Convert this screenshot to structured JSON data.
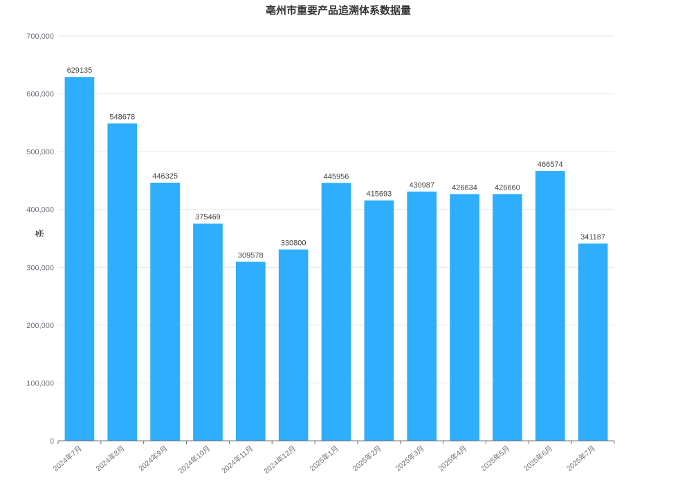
{
  "chart_data": {
    "type": "bar",
    "title": "亳州市重要产品追溯体系数据量",
    "ylabel": "条",
    "xlabel": "",
    "categories": [
      "2024年7月",
      "2024年8月",
      "2024年9月",
      "2024年10月",
      "2024年11月",
      "2024年12月",
      "2025年1月",
      "2025年2月",
      "2025年3月",
      "2025年4月",
      "2025年5月",
      "2025年6月",
      "2025年7月"
    ],
    "values": [
      629135,
      548678,
      446325,
      375469,
      309578,
      330800,
      445956,
      415693,
      430987,
      426634,
      426660,
      466574,
      341187
    ],
    "yticks": [
      "0",
      "100,000",
      "200,000",
      "300,000",
      "400,000",
      "500,000",
      "600,000",
      "700,000"
    ],
    "ylim": [
      0,
      700000
    ],
    "grid": true,
    "bar_color": "#2eaefc",
    "data_labels": true
  }
}
